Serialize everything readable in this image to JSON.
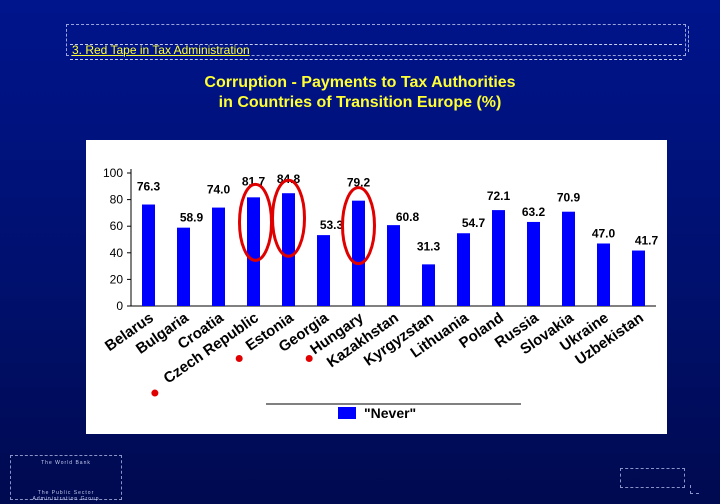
{
  "header": {
    "title": "3. Red Tape in Tax Administration"
  },
  "slide_title": {
    "line1": "Corruption -  Payments to Tax Authorities",
    "line2": "in Countries of Transition Europe (%)"
  },
  "footer": {
    "org": "The World Bank",
    "group_line1": "The Public Sector",
    "group_line2": "Administration Group"
  },
  "colors": {
    "background": "#00148c",
    "title": "#ffff33",
    "bar": "#0000ff",
    "highlight_circle": "#e00000",
    "marker_dot": "#e00000"
  },
  "chart_data": {
    "type": "bar",
    "categories": [
      "Belarus",
      "Bulgaria",
      "Croatia",
      "Czech Republic",
      "Estonia",
      "Georgia",
      "Hungary",
      "Kazakhstan",
      "Kyrgyzstan",
      "Lithuania",
      "Poland",
      "Russia",
      "Slovakia",
      "Ukraine",
      "Uzbekistan"
    ],
    "series": [
      {
        "name": "\"Never\"",
        "values": [
          76.3,
          58.9,
          74.0,
          81.7,
          84.8,
          53.3,
          79.2,
          60.8,
          31.3,
          54.7,
          72.1,
          63.2,
          70.9,
          47.0,
          41.7
        ]
      }
    ],
    "data_labels": [
      "76.3",
      "58.9",
      "74.0",
      "81.7",
      "84.8",
      "53.3",
      "79.2",
      "60.8",
      "31.3",
      "54.7",
      "72.1",
      "63.2",
      "70.9",
      "47.0",
      "41.7"
    ],
    "yticks": [
      "0",
      "20",
      "40",
      "60",
      "80",
      "100"
    ],
    "ylim": [
      0,
      100
    ],
    "grid": false,
    "legend_position": "bottom",
    "highlighted_values": [
      "81.7",
      "84.8",
      "79.2"
    ],
    "marked_categories": [
      "Czech Republic",
      "Estonia",
      "Hungary"
    ],
    "xlabel": "",
    "ylabel": ""
  }
}
